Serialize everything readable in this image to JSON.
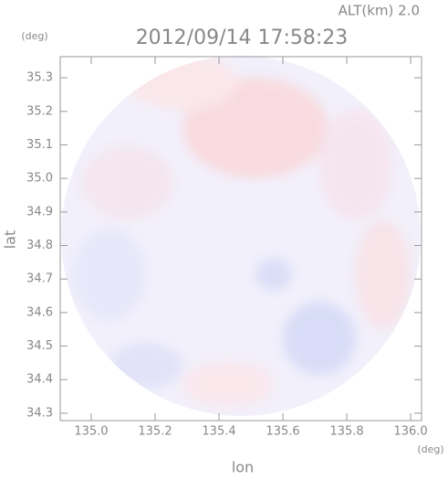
{
  "chart_data": {
    "type": "radar-map",
    "title": "2012/09/14 17:58:23",
    "subtitle": "ALT(km) 2.0",
    "xlabel": "lon",
    "ylabel": "lat",
    "xunit": "(deg)",
    "yunit": "(deg)",
    "xlim": [
      134.903,
      136.034
    ],
    "ylim": [
      34.278,
      35.363
    ],
    "xticks": [
      {
        "value": 135.0,
        "label": "135.0"
      },
      135.2,
      135.4,
      135.6,
      135.8,
      {
        "value": 136.0,
        "label": "136.0"
      }
    ],
    "yticks": [
      34.3,
      34.4,
      34.5,
      34.6,
      34.7,
      34.8,
      34.9,
      {
        "value": 35.0,
        "label": "35.0"
      },
      35.1,
      35.2,
      35.3
    ]
  }
}
